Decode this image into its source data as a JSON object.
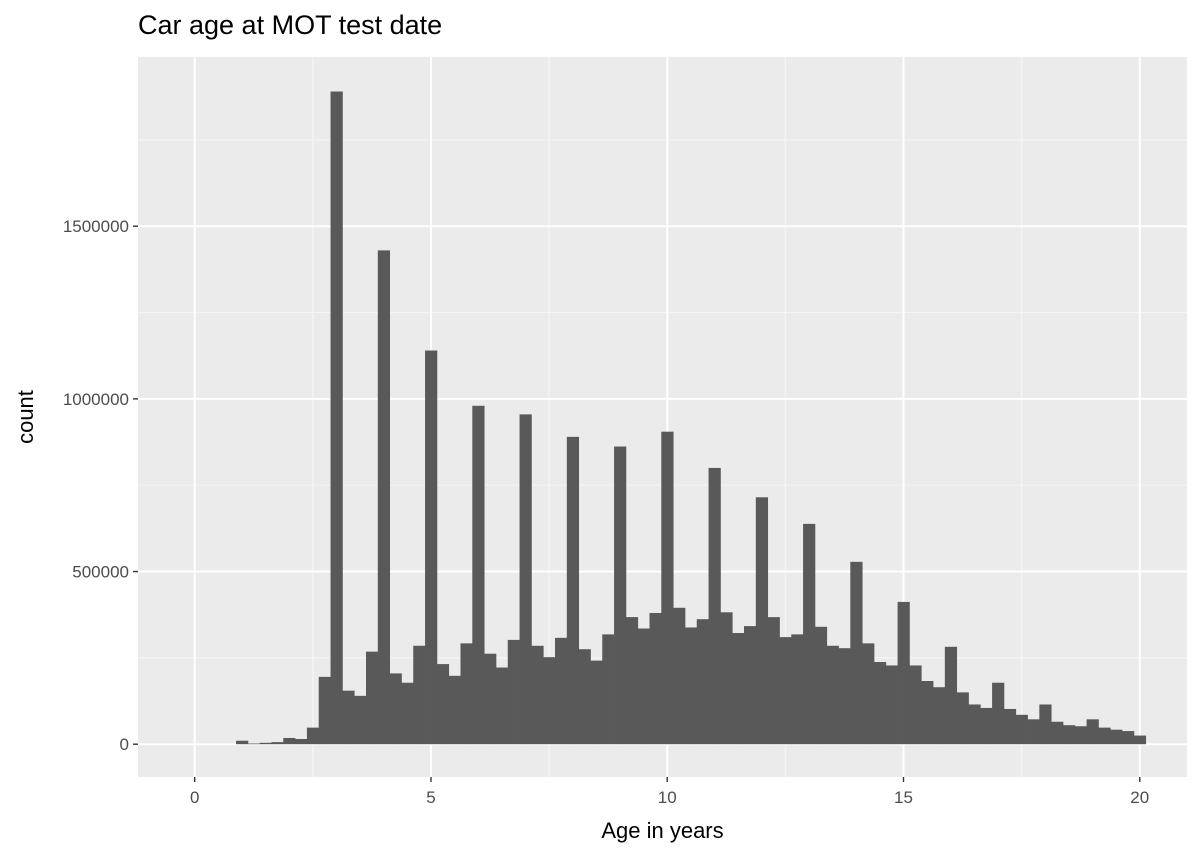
{
  "chart_data": {
    "type": "bar",
    "title": "Car age at MOT test date",
    "xlabel": "Age in years",
    "ylabel": "count",
    "xlim": [
      -1.2,
      21.0
    ],
    "ylim": [
      -95000,
      1990000
    ],
    "x_ticks": [
      0,
      5,
      10,
      15,
      20
    ],
    "x_tick_labels": [
      "0",
      "5",
      "10",
      "15",
      "20"
    ],
    "y_ticks": [
      0,
      500000,
      1000000,
      1500000
    ],
    "y_tick_labels": [
      "0",
      "500000",
      "1000000",
      "1500000"
    ],
    "grid": true,
    "bin_width": 0.25,
    "bin_centers": [
      1.0,
      1.25,
      1.5,
      1.75,
      2.0,
      2.25,
      2.5,
      2.75,
      3.0,
      3.25,
      3.5,
      3.75,
      4.0,
      4.25,
      4.5,
      4.75,
      5.0,
      5.25,
      5.5,
      5.75,
      6.0,
      6.25,
      6.5,
      6.75,
      7.0,
      7.25,
      7.5,
      7.75,
      8.0,
      8.25,
      8.5,
      8.75,
      9.0,
      9.25,
      9.5,
      9.75,
      10.0,
      10.25,
      10.5,
      10.75,
      11.0,
      11.25,
      11.5,
      11.75,
      12.0,
      12.25,
      12.5,
      12.75,
      13.0,
      13.25,
      13.5,
      13.75,
      14.0,
      14.25,
      14.5,
      14.75,
      15.0,
      15.25,
      15.5,
      15.75,
      16.0,
      16.25,
      16.5,
      16.75,
      17.0,
      17.25,
      17.5,
      17.75,
      18.0,
      18.25,
      18.5,
      18.75,
      19.0,
      19.25,
      19.5,
      19.75,
      20.0
    ],
    "values": [
      10000,
      2000,
      4000,
      6000,
      18000,
      15000,
      48000,
      195000,
      1890000,
      155000,
      140000,
      268000,
      1430000,
      205000,
      178000,
      285000,
      1140000,
      232000,
      198000,
      292000,
      980000,
      262000,
      222000,
      302000,
      955000,
      285000,
      252000,
      308000,
      890000,
      275000,
      242000,
      318000,
      862000,
      368000,
      335000,
      380000,
      905000,
      395000,
      338000,
      362000,
      800000,
      382000,
      322000,
      342000,
      715000,
      368000,
      310000,
      318000,
      638000,
      340000,
      285000,
      278000,
      528000,
      292000,
      238000,
      228000,
      412000,
      228000,
      183000,
      165000,
      282000,
      150000,
      115000,
      105000,
      178000,
      102000,
      85000,
      72000,
      115000,
      65000,
      55000,
      52000,
      72000,
      48000,
      42000,
      38000,
      25000
    ],
    "colors": {
      "panel": "#ebebeb",
      "grid_major": "#ffffff",
      "grid_minor": "#f5f5f5",
      "bar": "#595959"
    }
  }
}
